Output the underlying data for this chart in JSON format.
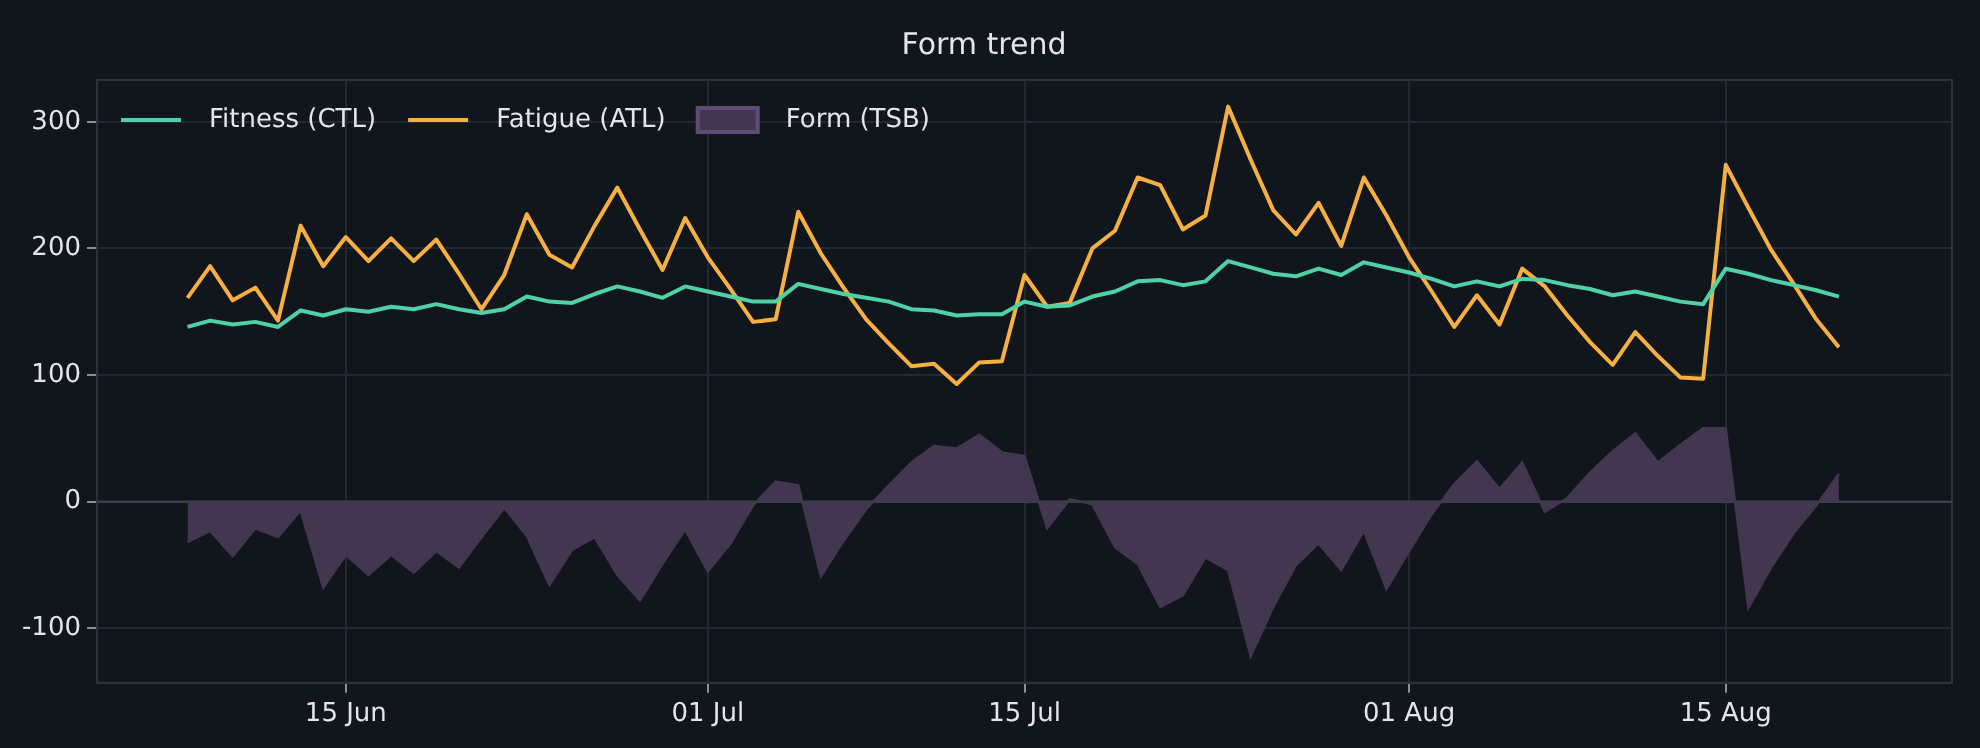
{
  "chart_data": {
    "type": "line",
    "title": "Form trend",
    "x": [
      "--06-08",
      "--06-09",
      "--06-10",
      "--06-11",
      "--06-12",
      "--06-13",
      "--06-14",
      "--06-15",
      "--06-16",
      "--06-17",
      "--06-18",
      "--06-19",
      "--06-20",
      "--06-21",
      "--06-22",
      "--06-23",
      "--06-24",
      "--06-25",
      "--06-26",
      "--06-27",
      "--06-28",
      "--06-29",
      "--06-30",
      "--07-01",
      "--07-02",
      "--07-03",
      "--07-04",
      "--07-05",
      "--07-06",
      "--07-07",
      "--07-08",
      "--07-09",
      "--07-10",
      "--07-11",
      "--07-12",
      "--07-13",
      "--07-14",
      "--07-15",
      "--07-16",
      "--07-17",
      "--07-18",
      "--07-19",
      "--07-20",
      "--07-21",
      "--07-22",
      "--07-23",
      "--07-24",
      "--07-25",
      "--07-26",
      "--07-27",
      "--07-28",
      "--07-29",
      "--07-30",
      "--07-31",
      "--08-01",
      "--08-02",
      "--08-03",
      "--08-04",
      "--08-05",
      "--08-06",
      "--08-07",
      "--08-08",
      "--08-09",
      "--08-10",
      "--08-11",
      "--08-12",
      "--08-13",
      "--08-14",
      "--08-15",
      "--08-16",
      "--08-17",
      "--08-18",
      "--08-19",
      "--08-20"
    ],
    "series": [
      {
        "name": "Fitness (CTL)",
        "type": "line",
        "color": "#4fd1a5",
        "values": [
          138,
          143,
          140,
          142,
          138,
          151,
          147,
          152,
          150,
          154,
          152,
          156,
          152,
          149,
          152,
          162,
          158,
          157,
          164,
          170,
          166,
          161,
          170,
          166,
          162,
          158,
          158,
          172,
          168,
          164,
          161,
          158,
          152,
          151,
          147,
          148,
          148,
          158,
          154,
          155,
          162,
          166,
          174,
          175,
          171,
          174,
          190,
          185,
          180,
          178,
          184,
          179,
          189,
          185,
          181,
          176,
          170,
          174,
          170,
          176,
          175,
          171,
          168,
          163,
          166,
          162,
          158,
          156,
          184,
          180,
          175,
          171,
          167,
          162
        ]
      },
      {
        "name": "Fatigue (ATL)",
        "type": "line",
        "color": "#f5b041",
        "values": [
          161,
          186,
          159,
          169,
          143,
          218,
          186,
          209,
          190,
          208,
          190,
          207,
          180,
          152,
          179,
          227,
          195,
          185,
          218,
          248,
          215,
          183,
          224,
          193,
          168,
          142,
          144,
          229,
          196,
          169,
          144,
          125,
          107,
          109,
          93,
          110,
          111,
          179,
          154,
          157,
          200,
          214,
          256,
          250,
          215,
          226,
          312,
          270,
          230,
          211,
          236,
          202,
          256,
          226,
          193,
          166,
          138,
          163,
          140,
          184,
          170,
          147,
          126,
          108,
          134,
          115,
          98,
          97,
          266,
          232,
          199,
          172,
          144,
          122
        ]
      },
      {
        "name": "Form (TSB)",
        "type": "area",
        "color": "#433651",
        "values": [
          -32,
          -23,
          -43,
          -21,
          -28,
          -7,
          -68,
          -42,
          -58,
          -42,
          -56,
          -39,
          -52,
          -28,
          -5,
          -27,
          -66,
          -38,
          -28,
          -58,
          -78,
          -49,
          -22,
          -55,
          -33,
          -3,
          16,
          13,
          -59,
          -31,
          -6,
          13,
          31,
          44,
          42,
          53,
          39,
          36,
          -21,
          2,
          -2,
          -36,
          -49,
          -83,
          -74,
          -44,
          -54,
          -122,
          -83,
          -50,
          -33,
          -54,
          -23,
          -69,
          -39,
          -10,
          14,
          32,
          10,
          31,
          -8,
          3,
          23,
          40,
          54,
          31,
          45,
          58,
          58,
          -84,
          -52,
          -25,
          -3,
          22
        ]
      }
    ],
    "xlim": [
      "--06-04",
      "--08-25"
    ],
    "xticks": [
      {
        "value": "--06-15",
        "label": "15 Jun"
      },
      {
        "value": "--07-01",
        "label": "01 Jul"
      },
      {
        "value": "--07-15",
        "label": "15 Jul"
      },
      {
        "value": "--08-01",
        "label": "01 Aug"
      },
      {
        "value": "--08-15",
        "label": "15 Aug"
      }
    ],
    "ylim": [
      -143,
      333
    ],
    "yticks": [
      -100,
      0,
      100,
      200,
      300
    ],
    "ref_lines": [
      {
        "axis": "y",
        "value": 0,
        "color": "#3a404c"
      }
    ],
    "grid": true,
    "legend": "top left"
  }
}
